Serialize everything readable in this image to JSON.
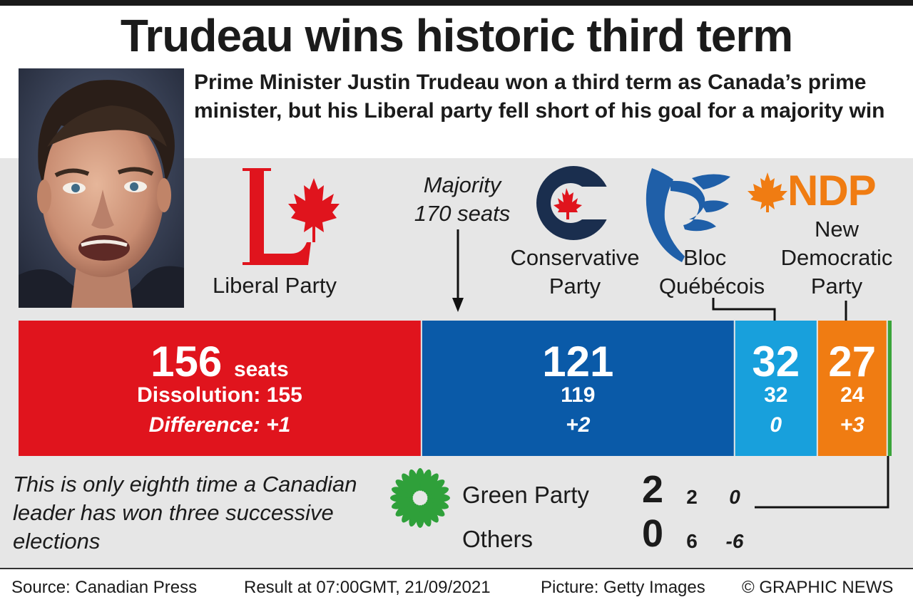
{
  "headline": "Trudeau wins historic third term",
  "standfirst": "Prime Minister Justin Trudeau won a third term as Canada’s prime minister, but his Liberal party fell short of his goal for a majority win",
  "majority_label": [
    "Majority",
    "170 seats"
  ],
  "colors": {
    "liberal": "#e0141d",
    "conservative": "#0a5aa8",
    "bloc": "#18a0dc",
    "ndp": "#f07c12",
    "green": "#3aa43a",
    "background": "#e6e6e6"
  },
  "logos": {
    "liberal": "liberal-logo",
    "conservative": "conservative-logo",
    "bloc": "bloc-quebecois-logo",
    "ndp": "ndp-logo",
    "ndp_text": "NDP",
    "green": "green-party-logo"
  },
  "party_labels": {
    "liberal": [
      "Liberal Party"
    ],
    "conservative": [
      "Conservative",
      "Party"
    ],
    "bloc": [
      "Bloc",
      "Québécois"
    ],
    "ndp": [
      "New",
      "Democratic",
      "Party"
    ]
  },
  "chart_data": {
    "type": "bar",
    "orientation": "horizontal-stacked",
    "total_seats": 338,
    "majority": 170,
    "series": [
      {
        "key": "liberal",
        "seats": 156,
        "seats_label": "156",
        "unit_label": "seats",
        "dissolution": 155,
        "dissolution_label": "Dissolution: 155",
        "difference": "+1",
        "difference_label": "Difference: +1",
        "color": "#e0141d"
      },
      {
        "key": "conservative",
        "seats": 121,
        "seats_label": "121",
        "dissolution": 119,
        "dissolution_label": "119",
        "difference": "+2",
        "difference_label": "+2",
        "color": "#0a5aa8"
      },
      {
        "key": "bloc",
        "seats": 32,
        "seats_label": "32",
        "dissolution": 32,
        "dissolution_label": "32",
        "difference": "0",
        "difference_label": "0",
        "color": "#18a0dc"
      },
      {
        "key": "ndp",
        "seats": 27,
        "seats_label": "27",
        "dissolution": 24,
        "dissolution_label": "24",
        "difference": "+3",
        "difference_label": "+3",
        "color": "#f07c12"
      },
      {
        "key": "green",
        "seats": 2,
        "seats_label": "",
        "dissolution": 2,
        "dissolution_label": "",
        "difference": "0",
        "difference_label": "",
        "color": "#3aa43a"
      }
    ],
    "minor_parties": [
      {
        "name": "Green Party",
        "seats": "2",
        "dissolution": "2",
        "difference": "0"
      },
      {
        "name": "Others",
        "seats": "0",
        "dissolution": "6",
        "difference": "-6"
      }
    ]
  },
  "note": "This is only eighth time a Canadian leader has won three successive elections",
  "footer": {
    "source": "Source: Canadian Press",
    "result": "Result at 07:00GMT, 21/09/2021",
    "picture": "Picture: Getty Images",
    "copyright": "© GRAPHIC NEWS"
  }
}
